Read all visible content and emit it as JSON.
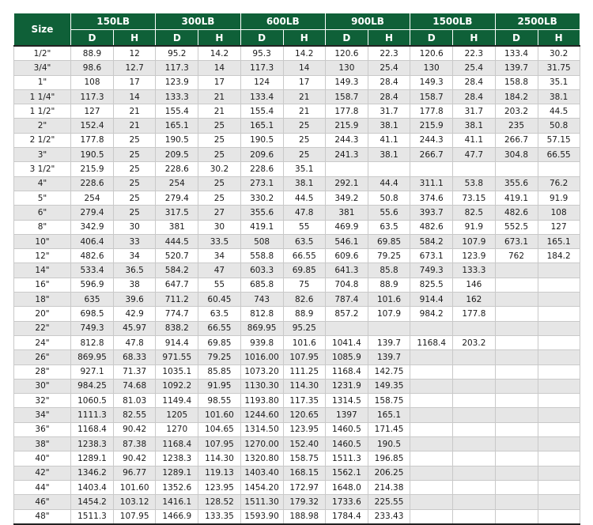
{
  "table": {
    "size_label": "Size",
    "classes": [
      "150LB",
      "300LB",
      "600LB",
      "900LB",
      "1500LB",
      "2500LB"
    ],
    "sub_labels": {
      "d": "D",
      "h": "H"
    },
    "rows": [
      [
        "1/2\"",
        "88.9",
        "12",
        "95.2",
        "14.2",
        "95.3",
        "14.2",
        "120.6",
        "22.3",
        "120.6",
        "22.3",
        "133.4",
        "30.2"
      ],
      [
        "3/4\"",
        "98.6",
        "12.7",
        "117.3",
        "14",
        "117.3",
        "14",
        "130",
        "25.4",
        "130",
        "25.4",
        "139.7",
        "31.75"
      ],
      [
        "1\"",
        "108",
        "17",
        "123.9",
        "17",
        "124",
        "17",
        "149.3",
        "28.4",
        "149.3",
        "28.4",
        "158.8",
        "35.1"
      ],
      [
        "1 1/4\"",
        "117.3",
        "14",
        "133.3",
        "21",
        "133.4",
        "21",
        "158.7",
        "28.4",
        "158.7",
        "28.4",
        "184.2",
        "38.1"
      ],
      [
        "1 1/2\"",
        "127",
        "21",
        "155.4",
        "21",
        "155.4",
        "21",
        "177.8",
        "31.7",
        "177.8",
        "31.7",
        "203.2",
        "44.5"
      ],
      [
        "2\"",
        "152.4",
        "21",
        "165.1",
        "25",
        "165.1",
        "25",
        "215.9",
        "38.1",
        "215.9",
        "38.1",
        "235",
        "50.8"
      ],
      [
        "2 1/2\"",
        "177.8",
        "25",
        "190.5",
        "25",
        "190.5",
        "25",
        "244.3",
        "41.1",
        "244.3",
        "41.1",
        "266.7",
        "57.15"
      ],
      [
        "3\"",
        "190.5",
        "25",
        "209.5",
        "25",
        "209.6",
        "25",
        "241.3",
        "38.1",
        "266.7",
        "47.7",
        "304.8",
        "66.55"
      ],
      [
        "3 1/2\"",
        "215.9",
        "25",
        "228.6",
        "30.2",
        "228.6",
        "35.1",
        "",
        "",
        "",
        "",
        "",
        ""
      ],
      [
        "4\"",
        "228.6",
        "25",
        "254",
        "25",
        "273.1",
        "38.1",
        "292.1",
        "44.4",
        "311.1",
        "53.8",
        "355.6",
        "76.2"
      ],
      [
        "5\"",
        "254",
        "25",
        "279.4",
        "25",
        "330.2",
        "44.5",
        "349.2",
        "50.8",
        "374.6",
        "73.15",
        "419.1",
        "91.9"
      ],
      [
        "6\"",
        "279.4",
        "25",
        "317.5",
        "27",
        "355.6",
        "47.8",
        "381",
        "55.6",
        "393.7",
        "82.5",
        "482.6",
        "108"
      ],
      [
        "8\"",
        "342.9",
        "30",
        "381",
        "30",
        "419.1",
        "55",
        "469.9",
        "63.5",
        "482.6",
        "91.9",
        "552.5",
        "127"
      ],
      [
        "10\"",
        "406.4",
        "33",
        "444.5",
        "33.5",
        "508",
        "63.5",
        "546.1",
        "69.85",
        "584.2",
        "107.9",
        "673.1",
        "165.1"
      ],
      [
        "12\"",
        "482.6",
        "34",
        "520.7",
        "34",
        "558.8",
        "66.55",
        "609.6",
        "79.25",
        "673.1",
        "123.9",
        "762",
        "184.2"
      ],
      [
        "14\"",
        "533.4",
        "36.5",
        "584.2",
        "47",
        "603.3",
        "69.85",
        "641.3",
        "85.8",
        "749.3",
        "133.3",
        "",
        ""
      ],
      [
        "16\"",
        "596.9",
        "38",
        "647.7",
        "55",
        "685.8",
        "75",
        "704.8",
        "88.9",
        "825.5",
        "146",
        "",
        ""
      ],
      [
        "18\"",
        "635",
        "39.6",
        "711.2",
        "60.45",
        "743",
        "82.6",
        "787.4",
        "101.6",
        "914.4",
        "162",
        "",
        ""
      ],
      [
        "20\"",
        "698.5",
        "42.9",
        "774.7",
        "63.5",
        "812.8",
        "88.9",
        "857.2",
        "107.9",
        "984.2",
        "177.8",
        "",
        ""
      ],
      [
        "22\"",
        "749.3",
        "45.97",
        "838.2",
        "66.55",
        "869.95",
        "95.25",
        "",
        "",
        "",
        "",
        "",
        ""
      ],
      [
        "24\"",
        "812.8",
        "47.8",
        "914.4",
        "69.85",
        "939.8",
        "101.6",
        "1041.4",
        "139.7",
        "1168.4",
        "203.2",
        "",
        ""
      ],
      [
        "26\"",
        "869.95",
        "68.33",
        "971.55",
        "79.25",
        "1016.00",
        "107.95",
        "1085.9",
        "139.7",
        "",
        "",
        "",
        ""
      ],
      [
        "28\"",
        "927.1",
        "71.37",
        "1035.1",
        "85.85",
        "1073.20",
        "111.25",
        "1168.4",
        "142.75",
        "",
        "",
        "",
        ""
      ],
      [
        "30\"",
        "984.25",
        "74.68",
        "1092.2",
        "91.95",
        "1130.30",
        "114.30",
        "1231.9",
        "149.35",
        "",
        "",
        "",
        ""
      ],
      [
        "32\"",
        "1060.5",
        "81.03",
        "1149.4",
        "98.55",
        "1193.80",
        "117.35",
        "1314.5",
        "158.75",
        "",
        "",
        "",
        ""
      ],
      [
        "34\"",
        "1111.3",
        "82.55",
        "1205",
        "101.60",
        "1244.60",
        "120.65",
        "1397",
        "165.1",
        "",
        "",
        "",
        ""
      ],
      [
        "36\"",
        "1168.4",
        "90.42",
        "1270",
        "104.65",
        "1314.50",
        "123.95",
        "1460.5",
        "171.45",
        "",
        "",
        "",
        ""
      ],
      [
        "38\"",
        "1238.3",
        "87.38",
        "1168.4",
        "107.95",
        "1270.00",
        "152.40",
        "1460.5",
        "190.5",
        "",
        "",
        "",
        ""
      ],
      [
        "40\"",
        "1289.1",
        "90.42",
        "1238.3",
        "114.30",
        "1320.80",
        "158.75",
        "1511.3",
        "196.85",
        "",
        "",
        "",
        ""
      ],
      [
        "42\"",
        "1346.2",
        "96.77",
        "1289.1",
        "119.13",
        "1403.40",
        "168.15",
        "1562.1",
        "206.25",
        "",
        "",
        "",
        ""
      ],
      [
        "44\"",
        "1403.4",
        "101.60",
        "1352.6",
        "123.95",
        "1454.20",
        "172.97",
        "1648.0",
        "214.38",
        "",
        "",
        "",
        ""
      ],
      [
        "46\"",
        "1454.2",
        "103.12",
        "1416.1",
        "128.52",
        "1511.30",
        "179.32",
        "1733.6",
        "225.55",
        "",
        "",
        "",
        ""
      ],
      [
        "48\"",
        "1511.3",
        "107.95",
        "1466.9",
        "133.35",
        "1593.90",
        "188.98",
        "1784.4",
        "233.43",
        "",
        "",
        "",
        ""
      ]
    ]
  }
}
